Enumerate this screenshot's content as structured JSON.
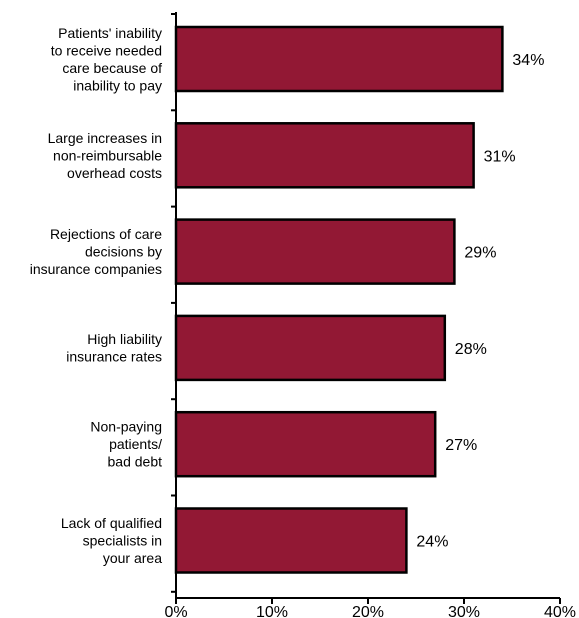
{
  "chart_data": {
    "type": "bar",
    "orientation": "horizontal",
    "title": "",
    "xlabel": "",
    "ylabel": "",
    "categories": [
      [
        "Patients' inability",
        "to receive needed",
        "care because of",
        "inability to pay"
      ],
      [
        "Large increases in",
        "non-reimbursable",
        "overhead costs"
      ],
      [
        "Rejections of care",
        "decisions by",
        "insurance companies"
      ],
      [
        "High liability",
        "insurance rates"
      ],
      [
        "Non-paying",
        "patients/",
        "bad debt"
      ],
      [
        "Lack of qualified",
        "specialists in",
        "your area"
      ]
    ],
    "values": [
      34,
      31,
      29,
      28,
      27,
      24
    ],
    "value_labels": [
      "34%",
      "31%",
      "29%",
      "28%",
      "27%",
      "24%"
    ],
    "xlim": [
      0,
      40
    ],
    "x_ticks": [
      0,
      10,
      20,
      30,
      40
    ],
    "x_tick_labels": [
      "0%",
      "10%",
      "20%",
      "30%",
      "40%"
    ],
    "grid": false,
    "legend": "none",
    "bar_color": "#921834",
    "bar_border_color": "#000000"
  }
}
